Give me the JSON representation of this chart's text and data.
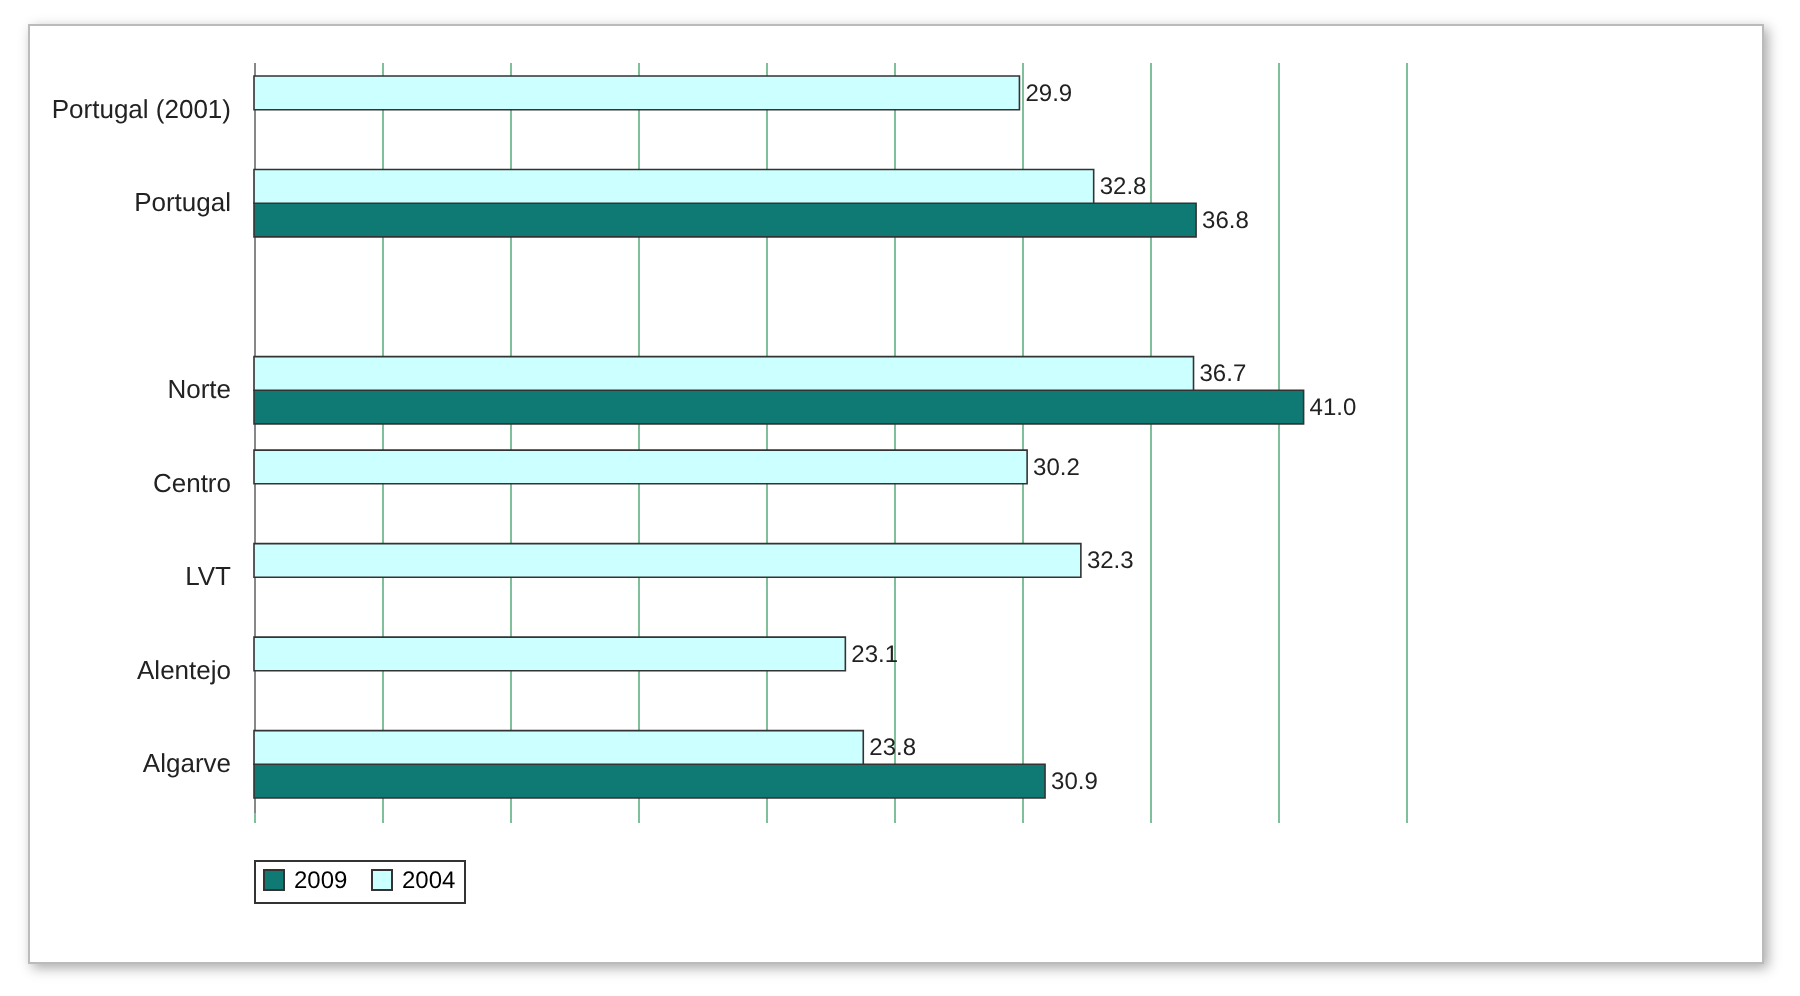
{
  "chart_data": {
    "type": "bar",
    "orientation": "horizontal",
    "categories": [
      "Portugal (2001)",
      "Portugal",
      null,
      "Norte",
      "Centro",
      "LVT",
      "Alentejo",
      "Algarve"
    ],
    "series": [
      {
        "name": "2009",
        "color": "#0f7a73",
        "values": [
          null,
          36.8,
          null,
          41.0,
          null,
          null,
          null,
          30.9
        ],
        "value_labels": [
          null,
          "36.8",
          null,
          "41.0",
          null,
          null,
          null,
          "30.9"
        ]
      },
      {
        "name": "2004",
        "color": "#ccffff",
        "values": [
          29.9,
          32.8,
          null,
          36.7,
          30.2,
          32.3,
          23.1,
          23.8
        ],
        "value_labels": [
          "29.9",
          "32.8",
          null,
          "36.7",
          "30.2",
          "32.3",
          "23.1",
          "23.8"
        ]
      }
    ],
    "xlim": [
      0,
      45
    ],
    "xticks": [
      {
        "value": 0,
        "label": null
      },
      {
        "value": 5,
        "label": null
      },
      {
        "value": 10,
        "label": null
      },
      {
        "value": 15,
        "label": null
      },
      {
        "value": 20,
        "label": null
      },
      {
        "value": 25,
        "label": null
      },
      {
        "value": 30,
        "label": null
      },
      {
        "value": 35,
        "label": null
      },
      {
        "value": 40,
        "label": null
      },
      {
        "value": 45,
        "label": null
      }
    ],
    "tick_labels": "y",
    "grid": "x",
    "legend": "bottom"
  }
}
